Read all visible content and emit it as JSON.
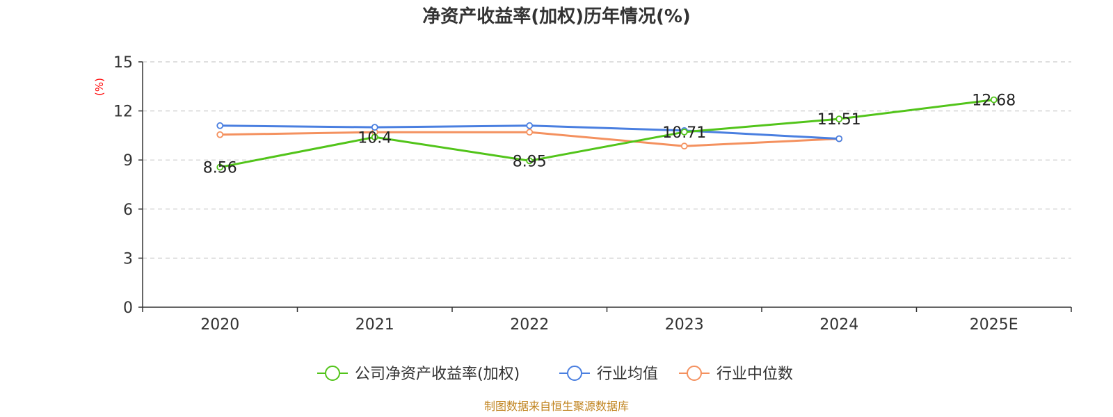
{
  "chart_data": {
    "type": "line",
    "title": "净资产收益率(加权)历年情况(%)",
    "ylabel": "(%)",
    "categories": [
      "2020",
      "2021",
      "2022",
      "2023",
      "2024",
      "2025E"
    ],
    "ylim": [
      0,
      15
    ],
    "yticks": [
      0,
      3,
      6,
      9,
      12,
      15
    ],
    "grid": true,
    "legend_position": "bottom",
    "series": [
      {
        "name": "公司净资产收益率(加权)",
        "color": "#52c41a",
        "values": [
          8.56,
          10.4,
          8.95,
          10.71,
          11.51,
          12.68
        ],
        "labels": [
          "8.56",
          "10.4",
          "8.95",
          "10.71",
          "11.51",
          "12.68"
        ]
      },
      {
        "name": "行业均值",
        "color": "#4a7fe0",
        "values": [
          11.1,
          11.0,
          11.1,
          10.8,
          10.3,
          null
        ]
      },
      {
        "name": "行业中位数",
        "color": "#f4915f",
        "values": [
          10.55,
          10.7,
          10.7,
          9.85,
          10.3,
          null
        ]
      }
    ]
  },
  "source": "制图数据来自恒生聚源数据库"
}
